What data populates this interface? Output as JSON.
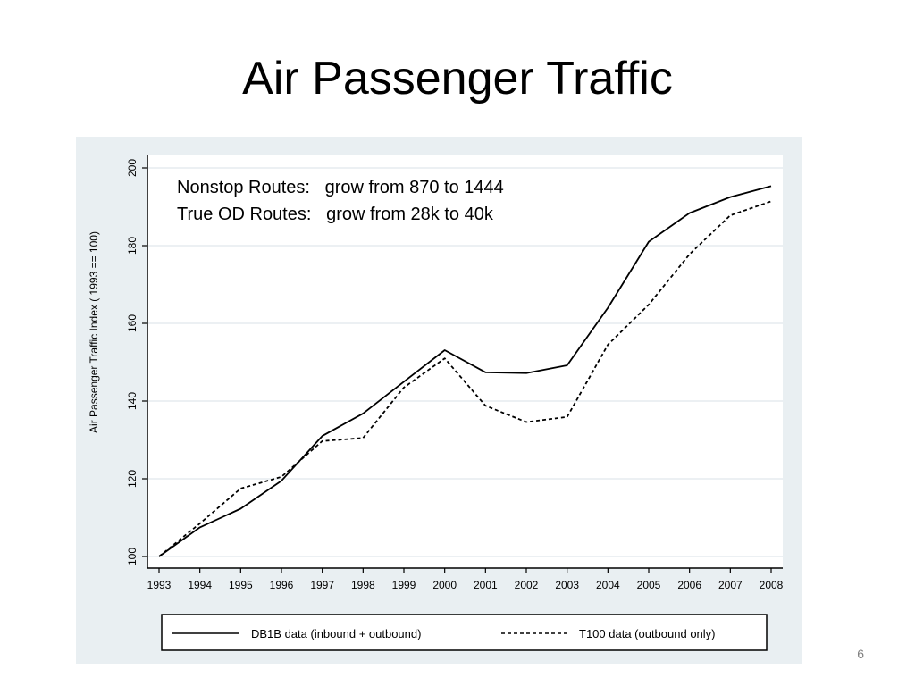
{
  "slide": {
    "title": "Air Passenger Traffic",
    "page_number": "6"
  },
  "chart_data": {
    "type": "line",
    "ylabel": "Air Passenger Traffic Index ( 1993 == 100)",
    "xlabel": "",
    "x": [
      1993,
      1994,
      1995,
      1996,
      1997,
      1998,
      1999,
      2000,
      2001,
      2002,
      2003,
      2004,
      2005,
      2006,
      2007,
      2008
    ],
    "xticks": [
      "1993",
      "1994",
      "1995",
      "1996",
      "1997",
      "1998",
      "1999",
      "2000",
      "2001",
      "2002",
      "2003",
      "2004",
      "2005",
      "2006",
      "2007",
      "2008"
    ],
    "ylim": [
      100,
      200
    ],
    "yticks": [
      "100",
      "120",
      "140",
      "160",
      "180",
      "200"
    ],
    "grid": true,
    "legend_position": "bottom",
    "series": [
      {
        "name": "DB1B data (inbound + outbound)",
        "style": "solid",
        "color": "#000000",
        "values": [
          100,
          107.5,
          112.3,
          119.5,
          131.0,
          136.8,
          145.0,
          153.1,
          147.4,
          147.2,
          149.2,
          164.0,
          181.0,
          188.4,
          192.5,
          195.3
        ]
      },
      {
        "name": "T100 data (outbound only)",
        "style": "dashed",
        "color": "#000000",
        "values": [
          100,
          108.5,
          117.5,
          120.5,
          129.7,
          130.5,
          143.5,
          151.0,
          138.8,
          134.6,
          135.9,
          154.5,
          164.8,
          177.8,
          187.8,
          191.4
        ]
      }
    ],
    "annotations": [
      "Nonstop Routes:   grow from 870 to 1444",
      "True OD Routes:   grow from 28k to 40k"
    ]
  }
}
